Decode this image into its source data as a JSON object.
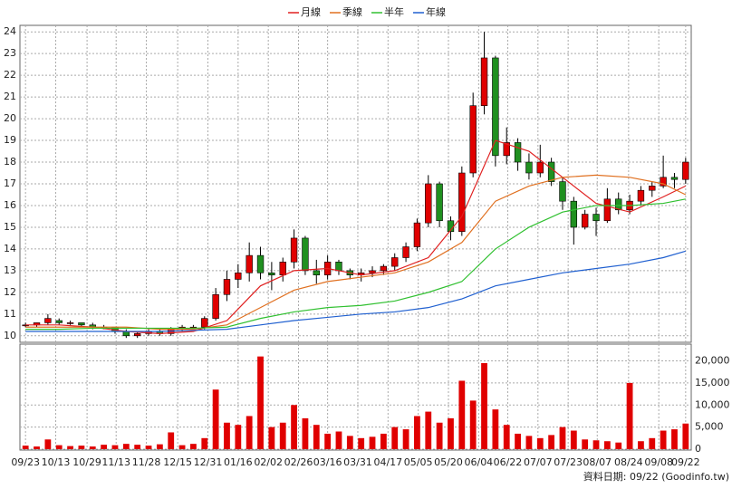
{
  "chart_data": {
    "type": "candlestick",
    "xlim": [
      -0.5,
      59.5
    ],
    "xticks": [
      {
        "value": 0,
        "label": "09/23"
      },
      {
        "value": 2.7,
        "label": "10/13"
      },
      {
        "value": 5.5,
        "label": "10/29"
      },
      {
        "value": 8.1,
        "label": "11/13"
      },
      {
        "value": 10.8,
        "label": "11/28"
      },
      {
        "value": 13.6,
        "label": "12/15"
      },
      {
        "value": 16.3,
        "label": "12/31"
      },
      {
        "value": 19,
        "label": "01/16"
      },
      {
        "value": 21.7,
        "label": "02/02"
      },
      {
        "value": 24.4,
        "label": "02/26"
      },
      {
        "value": 27,
        "label": "03/16"
      },
      {
        "value": 29.7,
        "label": "03/31"
      },
      {
        "value": 32.4,
        "label": "04/17"
      },
      {
        "value": 35.1,
        "label": "05/05"
      },
      {
        "value": 37.8,
        "label": "05/20"
      },
      {
        "value": 40.5,
        "label": "06/04"
      },
      {
        "value": 43.1,
        "label": "06/22"
      },
      {
        "value": 45.8,
        "label": "07/07"
      },
      {
        "value": 48.5,
        "label": "07/23"
      },
      {
        "value": 51.1,
        "label": "08/07"
      },
      {
        "value": 53.9,
        "label": "08/24"
      },
      {
        "value": 56.6,
        "label": "09/08"
      },
      {
        "value": 59,
        "label": "09/22"
      }
    ],
    "ylim": [
      9.7,
      24.3
    ],
    "yticks": [
      10,
      11,
      12,
      13,
      14,
      15,
      16,
      17,
      18,
      19,
      20,
      21,
      22,
      23,
      24
    ],
    "grid": true,
    "up_color": "#e00000",
    "down_color": "#209020",
    "open": [
      10.5,
      10.5,
      10.6,
      10.7,
      10.6,
      10.6,
      10.5,
      10.4,
      10.4,
      10.2,
      10.0,
      10.1,
      10.2,
      10.1,
      10.3,
      10.4,
      10.4,
      10.8,
      11.9,
      12.6,
      12.9,
      13.7,
      12.9,
      12.8,
      13.4,
      14.5,
      13.0,
      12.8,
      13.4,
      13.0,
      12.8,
      12.9,
      13.0,
      13.2,
      13.6,
      14.1,
      15.2,
      17.0,
      15.3,
      14.8,
      17.5,
      20.6,
      22.8,
      18.3,
      18.9,
      18.0,
      17.5,
      18.0,
      17.1,
      16.2,
      15.0,
      15.6,
      15.3,
      16.3,
      15.8,
      16.2,
      16.7,
      16.9,
      17.3,
      17.2
    ],
    "high": [
      10.6,
      10.6,
      11.0,
      10.8,
      10.7,
      10.6,
      10.6,
      10.5,
      10.4,
      10.3,
      10.2,
      10.3,
      10.3,
      10.4,
      10.5,
      10.5,
      10.9,
      12.2,
      13.0,
      13.3,
      14.3,
      14.1,
      13.4,
      13.6,
      14.9,
      14.6,
      13.5,
      13.7,
      13.5,
      13.1,
      13.1,
      13.2,
      13.3,
      13.8,
      14.3,
      15.4,
      17.4,
      17.1,
      15.5,
      17.8,
      21.2,
      24.0,
      22.9,
      19.6,
      19.1,
      18.4,
      18.8,
      18.2,
      17.3,
      16.4,
      15.8,
      15.9,
      16.8,
      16.6,
      16.5,
      16.9,
      17.1,
      18.3,
      17.5,
      18.2
    ],
    "low": [
      10.4,
      10.4,
      10.5,
      10.5,
      10.5,
      10.4,
      10.3,
      10.3,
      10.1,
      9.9,
      9.9,
      10.0,
      10.0,
      10.0,
      10.2,
      10.3,
      10.3,
      10.7,
      11.6,
      12.2,
      12.5,
      12.6,
      12.1,
      12.5,
      13.1,
      12.8,
      12.4,
      12.6,
      12.8,
      12.6,
      12.5,
      12.7,
      12.8,
      13.0,
      13.4,
      13.9,
      15.0,
      15.0,
      14.4,
      14.6,
      17.3,
      20.2,
      17.8,
      17.9,
      17.6,
      17.2,
      17.3,
      16.9,
      15.8,
      14.2,
      14.9,
      14.6,
      15.2,
      15.6,
      15.6,
      16.0,
      16.4,
      16.8,
      16.8,
      17.0
    ],
    "close": [
      10.5,
      10.6,
      10.8,
      10.6,
      10.6,
      10.5,
      10.4,
      10.4,
      10.2,
      10.0,
      10.1,
      10.2,
      10.1,
      10.3,
      10.4,
      10.4,
      10.8,
      11.9,
      12.6,
      12.9,
      13.7,
      12.9,
      12.8,
      13.4,
      14.5,
      13.0,
      12.8,
      13.4,
      13.0,
      12.8,
      12.9,
      13.0,
      13.2,
      13.6,
      14.1,
      15.2,
      17.0,
      15.3,
      14.8,
      17.5,
      20.6,
      22.8,
      18.3,
      18.9,
      18.0,
      17.5,
      18.0,
      17.1,
      16.2,
      15.0,
      15.6,
      15.3,
      16.3,
      15.8,
      16.2,
      16.7,
      16.9,
      17.3,
      17.2,
      18.0
    ],
    "series": [
      {
        "name": "月線",
        "color": "#e02020",
        "x": [
          0,
          3,
          6,
          9,
          12,
          15,
          18,
          21,
          24,
          27,
          30,
          33,
          36,
          39,
          42,
          45,
          48,
          51,
          54,
          57,
          59
        ],
        "values": [
          10.5,
          10.5,
          10.4,
          10.2,
          10.1,
          10.2,
          10.7,
          12.3,
          13.0,
          13.1,
          12.8,
          13.0,
          13.6,
          15.5,
          19.0,
          18.5,
          17.3,
          16.1,
          15.7,
          16.4,
          16.9
        ]
      },
      {
        "name": "季線",
        "color": "#e07020",
        "x": [
          0,
          3,
          6,
          9,
          12,
          15,
          18,
          21,
          24,
          27,
          30,
          33,
          36,
          39,
          42,
          45,
          48,
          51,
          54,
          57,
          59
        ],
        "values": [
          10.4,
          10.4,
          10.4,
          10.4,
          10.3,
          10.3,
          10.5,
          11.3,
          12.1,
          12.5,
          12.7,
          12.9,
          13.4,
          14.3,
          16.2,
          16.9,
          17.3,
          17.4,
          17.3,
          17.0,
          16.5
        ]
      },
      {
        "name": "半年",
        "color": "#30c030",
        "x": [
          0,
          3,
          6,
          9,
          12,
          15,
          18,
          21,
          24,
          27,
          30,
          33,
          36,
          39,
          42,
          45,
          48,
          51,
          54,
          57,
          59
        ],
        "values": [
          10.3,
          10.3,
          10.35,
          10.35,
          10.35,
          10.35,
          10.4,
          10.8,
          11.1,
          11.3,
          11.4,
          11.6,
          12.0,
          12.5,
          14.0,
          15.0,
          15.7,
          16.0,
          16.0,
          16.1,
          16.3
        ]
      },
      {
        "name": "年線",
        "color": "#2060d0",
        "x": [
          0,
          3,
          6,
          9,
          12,
          15,
          18,
          21,
          24,
          27,
          30,
          33,
          36,
          39,
          42,
          45,
          48,
          51,
          54,
          57,
          59
        ],
        "values": [
          10.2,
          10.2,
          10.2,
          10.2,
          10.2,
          10.25,
          10.3,
          10.5,
          10.7,
          10.85,
          11.0,
          11.1,
          11.3,
          11.7,
          12.3,
          12.6,
          12.9,
          13.1,
          13.3,
          13.6,
          13.9
        ]
      }
    ],
    "volume": {
      "color": "#e00000",
      "ylim": [
        0,
        23800
      ],
      "yticks": [
        0,
        {
          "value": 5000,
          "label": "5,000"
        },
        {
          "value": 10000,
          "label": "10,000"
        },
        {
          "value": 15000,
          "label": "15,000"
        },
        {
          "value": 20000,
          "label": "20,000"
        }
      ],
      "values": [
        800,
        600,
        2200,
        900,
        700,
        800,
        600,
        1000,
        900,
        1200,
        1000,
        800,
        1100,
        3800,
        900,
        1200,
        2500,
        13500,
        6000,
        5500,
        7500,
        21000,
        5000,
        6000,
        10000,
        7000,
        5500,
        3500,
        4000,
        3000,
        2500,
        2800,
        3500,
        5000,
        4500,
        7500,
        8500,
        6000,
        7000,
        15500,
        11000,
        19500,
        9000,
        5500,
        3500,
        3000,
        2500,
        3200,
        5000,
        4200,
        2200,
        2000,
        1800,
        1500,
        15000,
        1800,
        2500,
        4200,
        4500,
        5800
      ]
    },
    "source_note": "資料日期: 09/22 (Goodinfo.tw)"
  }
}
